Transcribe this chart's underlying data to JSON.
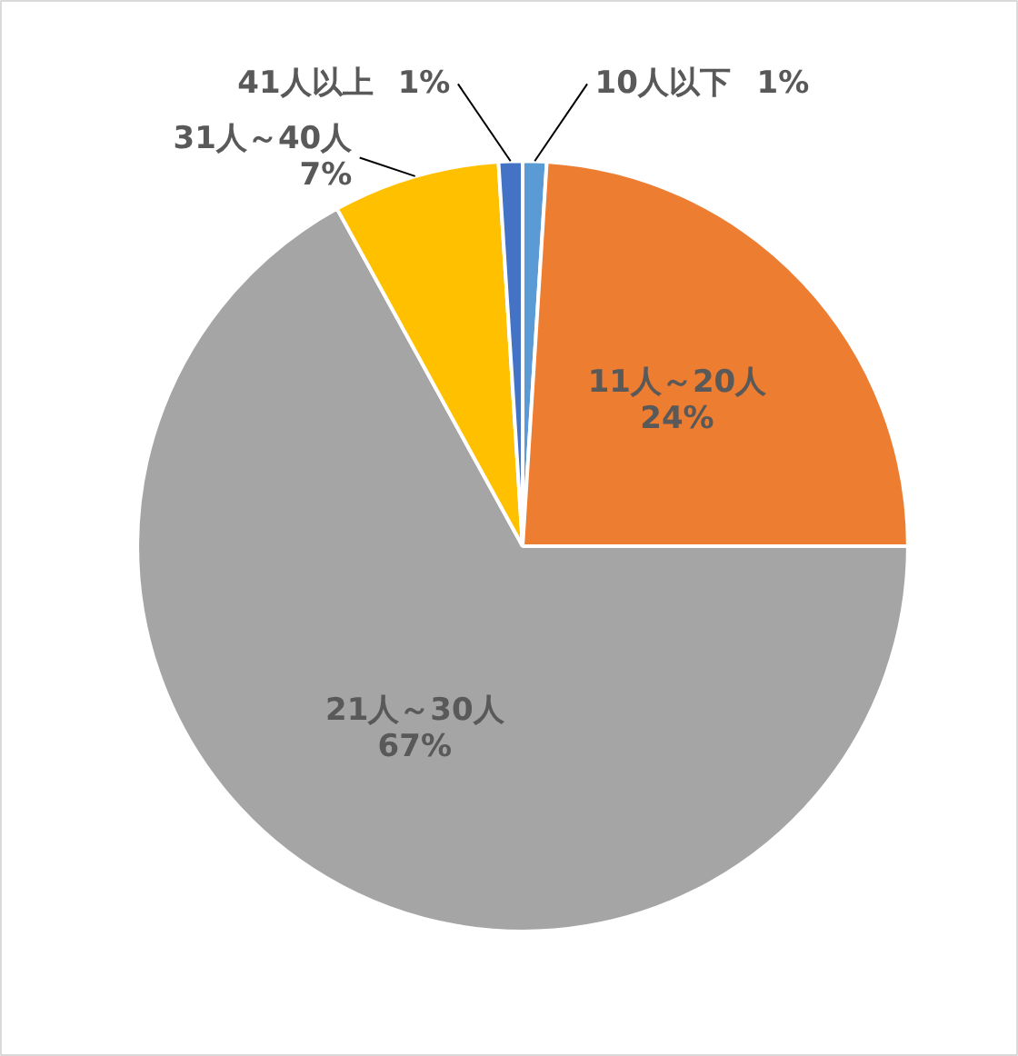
{
  "chart_data": {
    "type": "pie",
    "categories": [
      "10人以下",
      "11人～20人",
      "21人～30人",
      "31人～40人",
      "41人以上"
    ],
    "values": [
      1,
      24,
      67,
      7,
      1
    ],
    "value_labels": [
      "1%",
      "24%",
      "67%",
      "7%",
      "1%"
    ],
    "colors": [
      "#5b9bd5",
      "#ed7d31",
      "#a5a5a5",
      "#ffc000",
      "#4472c4"
    ]
  }
}
